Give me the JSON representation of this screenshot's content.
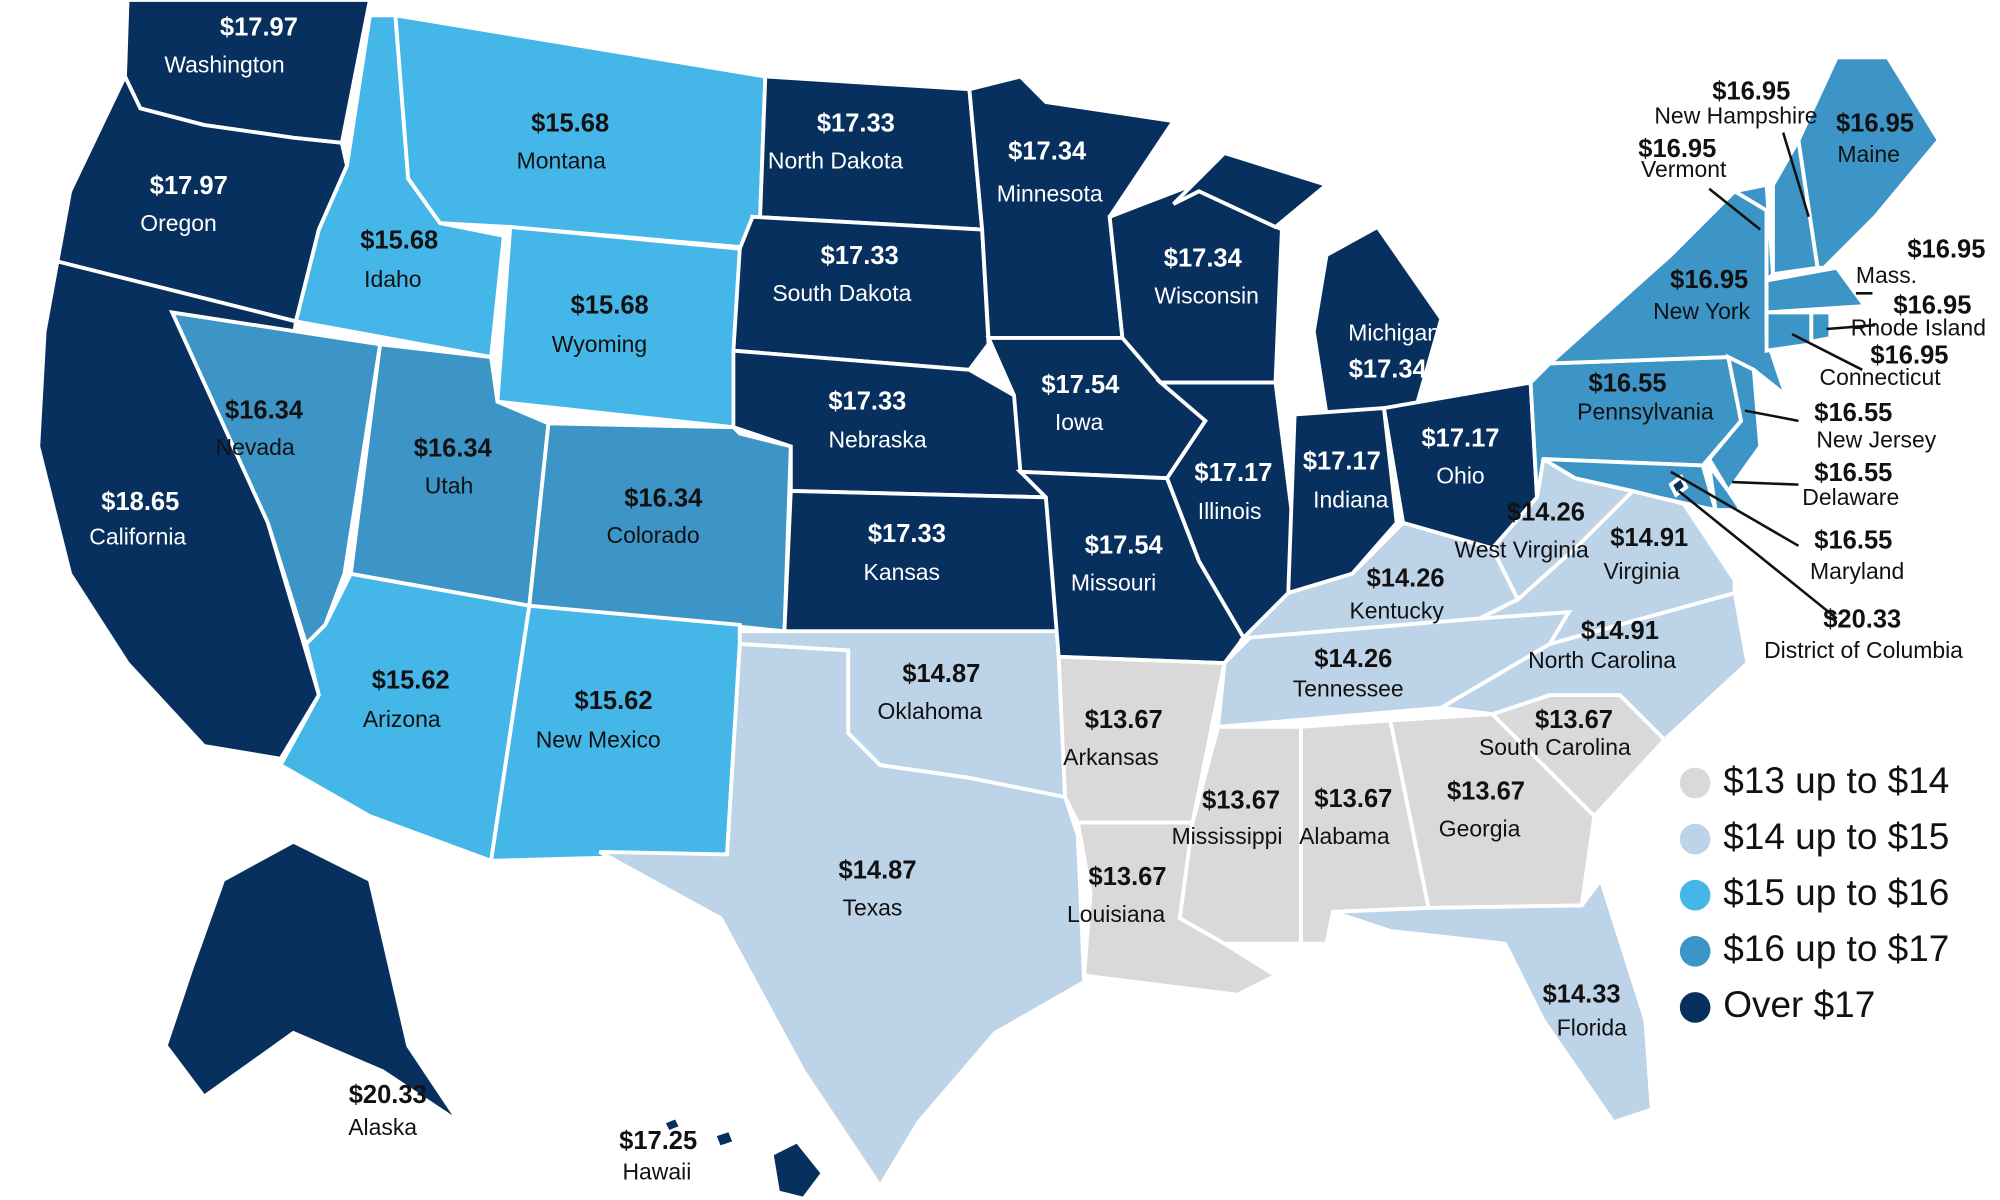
{
  "chart_data": {
    "type": "choropleth",
    "categories": [
      "Washington",
      "Oregon",
      "California",
      "Nevada",
      "Idaho",
      "Montana",
      "Wyoming",
      "Utah",
      "Colorado",
      "Arizona",
      "New Mexico",
      "North Dakota",
      "South Dakota",
      "Nebraska",
      "Kansas",
      "Oklahoma",
      "Texas",
      "Minnesota",
      "Iowa",
      "Missouri",
      "Arkansas",
      "Louisiana",
      "Wisconsin",
      "Illinois",
      "Michigan",
      "Indiana",
      "Ohio",
      "Kentucky",
      "Tennessee",
      "Mississippi",
      "Alabama",
      "Georgia",
      "Florida",
      "South Carolina",
      "North Carolina",
      "Virginia",
      "West Virginia",
      "Pennsylvania",
      "New York",
      "New Jersey",
      "Delaware",
      "Maryland",
      "District of Columbia",
      "Vermont",
      "New Hampshire",
      "Maine",
      "Mass.",
      "Rhode Island",
      "Connecticut",
      "Alaska",
      "Hawaii"
    ],
    "values": [
      17.97,
      17.97,
      18.65,
      16.34,
      15.68,
      15.68,
      15.68,
      16.34,
      16.34,
      15.62,
      15.62,
      17.33,
      17.33,
      17.33,
      17.33,
      14.87,
      14.87,
      17.34,
      17.54,
      17.54,
      13.67,
      13.67,
      17.34,
      17.17,
      17.34,
      17.17,
      17.17,
      14.26,
      14.26,
      13.67,
      13.67,
      13.67,
      14.33,
      13.67,
      14.91,
      14.91,
      14.26,
      16.55,
      16.95,
      16.55,
      16.55,
      16.55,
      20.33,
      16.95,
      16.95,
      16.95,
      16.95,
      16.95,
      16.95,
      20.33,
      17.25
    ],
    "value_labels": [
      "$17.97",
      "$17.97",
      "$18.65",
      "$16.34",
      "$15.68",
      "$15.68",
      "$15.68",
      "$16.34",
      "$16.34",
      "$15.62",
      "$15.62",
      "$17.33",
      "$17.33",
      "$17.33",
      "$17.33",
      "$14.87",
      "$14.87",
      "$17.34",
      "$17.54",
      "$17.54",
      "$13.67",
      "$13.67",
      "$17.34",
      "$17.17",
      "$17.34",
      "$17.17",
      "$17.17",
      "$14.26",
      "$14.26",
      "$13.67",
      "$13.67",
      "$13.67",
      "$14.33",
      "$13.67",
      "$14.91",
      "$14.91",
      "$14.26",
      "$16.55",
      "$16.95",
      "$16.55",
      "$16.55",
      "$16.55",
      "$20.33",
      "$16.95",
      "$16.95",
      "$16.95",
      "$16.95",
      "$16.95",
      "$16.95",
      "$20.33",
      "$17.25"
    ],
    "legend": [
      {
        "label": "$13 up to $14",
        "color": "#d9d9d9",
        "from": 13
      },
      {
        "label": "$14 up to $15",
        "color": "#bdd3e8",
        "from": 14
      },
      {
        "label": "$15 up to $16",
        "color": "#45b6e8",
        "from": 15
      },
      {
        "label": "$16 up to $17",
        "color": "#3d94c6",
        "from": 16
      },
      {
        "label": "Over $17",
        "color": "#08305f",
        "from": 17
      }
    ]
  }
}
